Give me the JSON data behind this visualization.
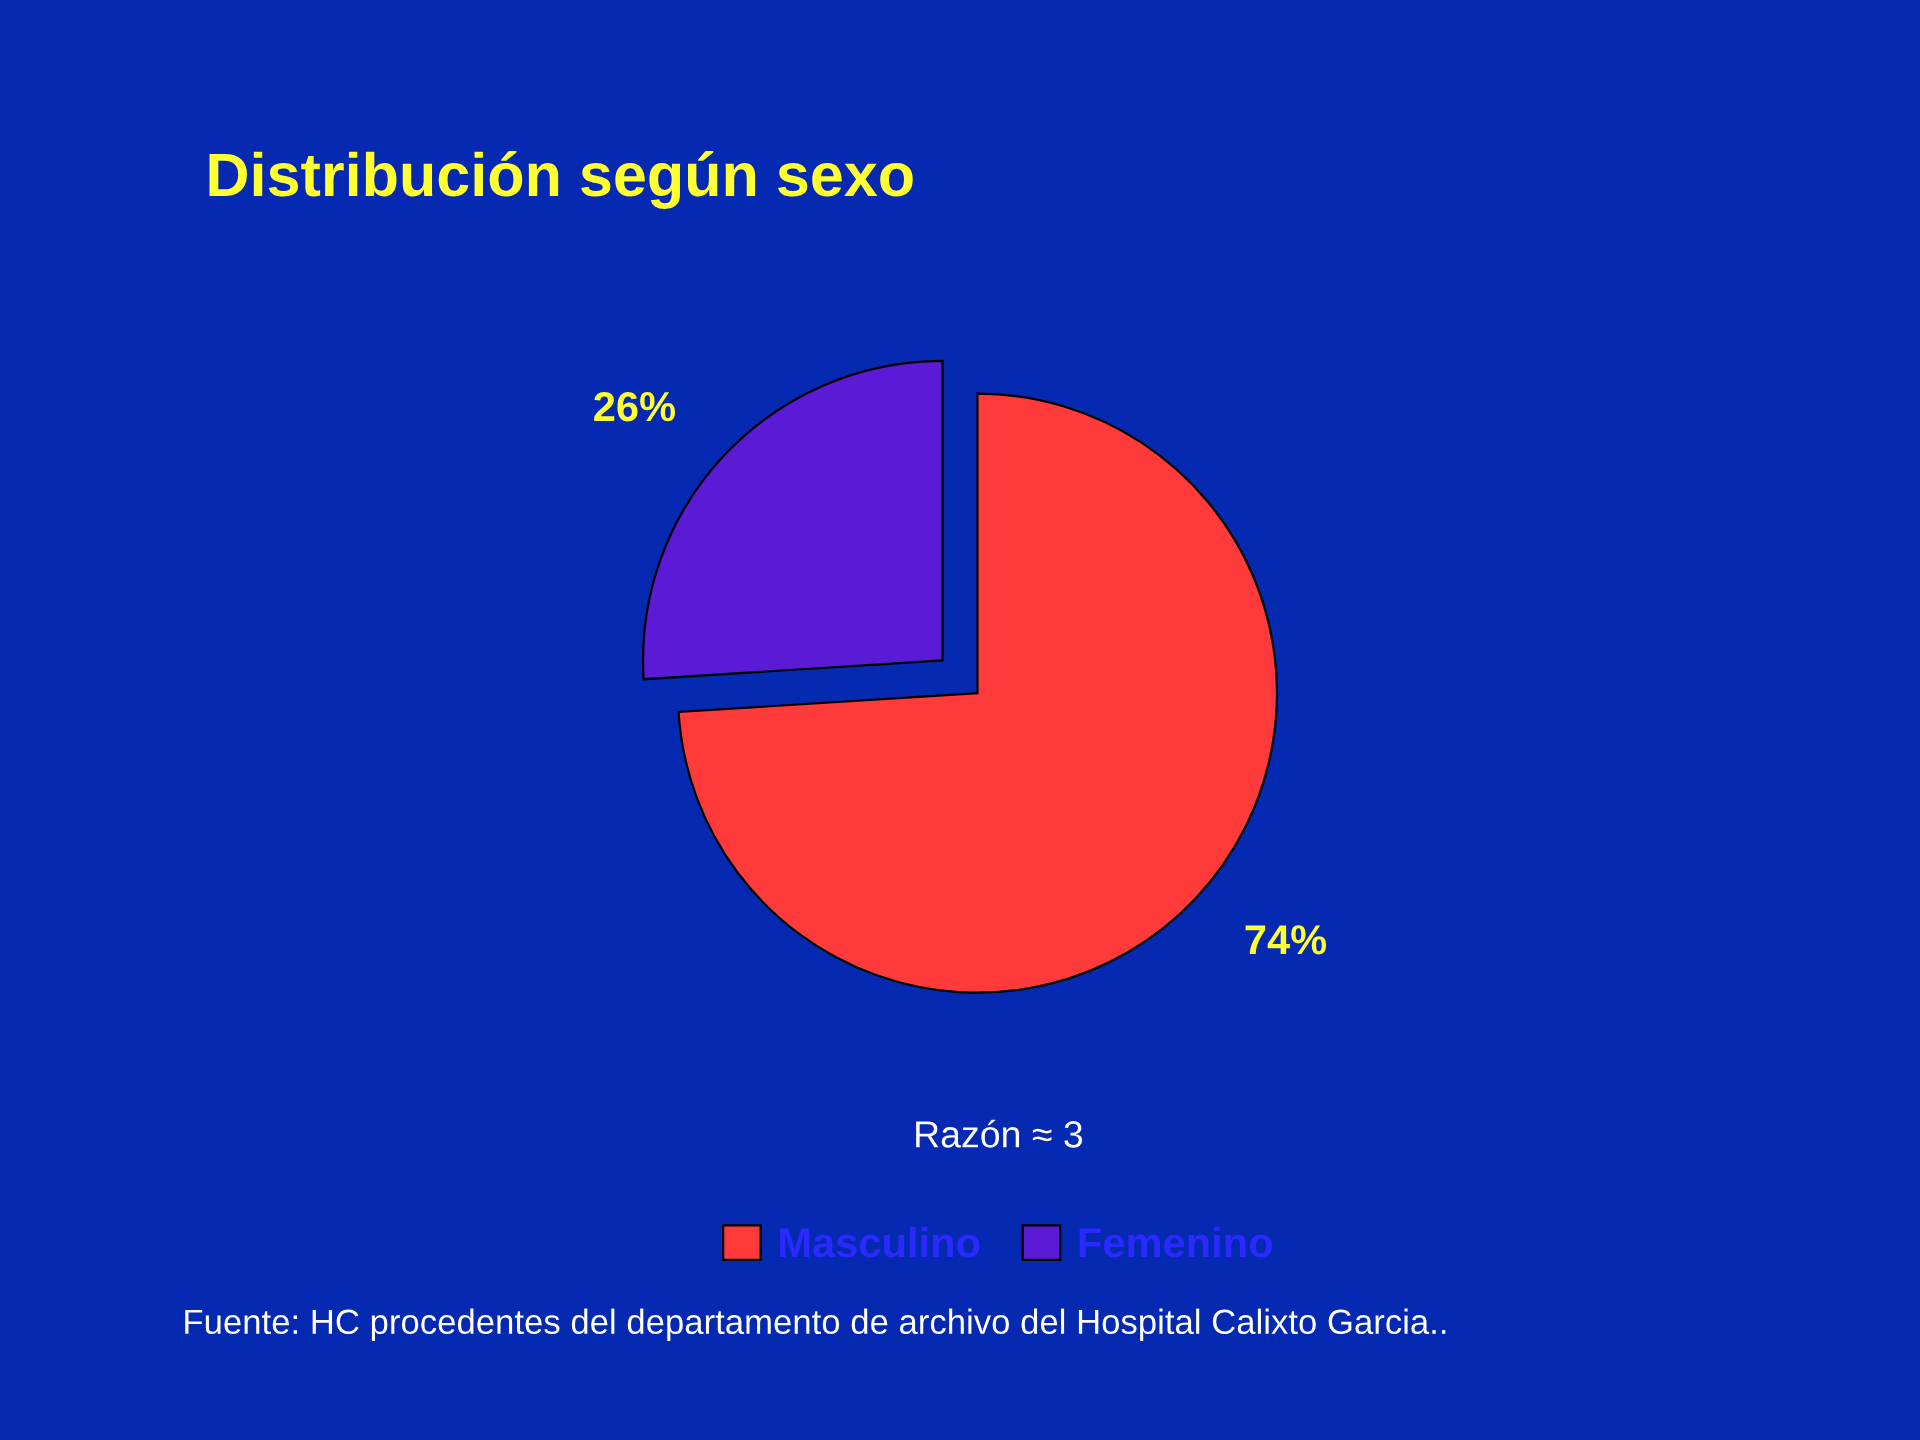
{
  "chart_data": {
    "type": "pie",
    "title": "Distribución según sexo",
    "categories": [
      "Masculino",
      "Femenino"
    ],
    "values": [
      74,
      26
    ],
    "colors": [
      "#ff3a3a",
      "#5a1ad6"
    ],
    "value_labels": [
      "74%",
      "26%"
    ],
    "legend": "bottom",
    "annotations": [
      "Razón ≈ 3",
      "Fuente: HC procedentes del departamento de archivo del Hospital Calixto Garcia.."
    ]
  }
}
